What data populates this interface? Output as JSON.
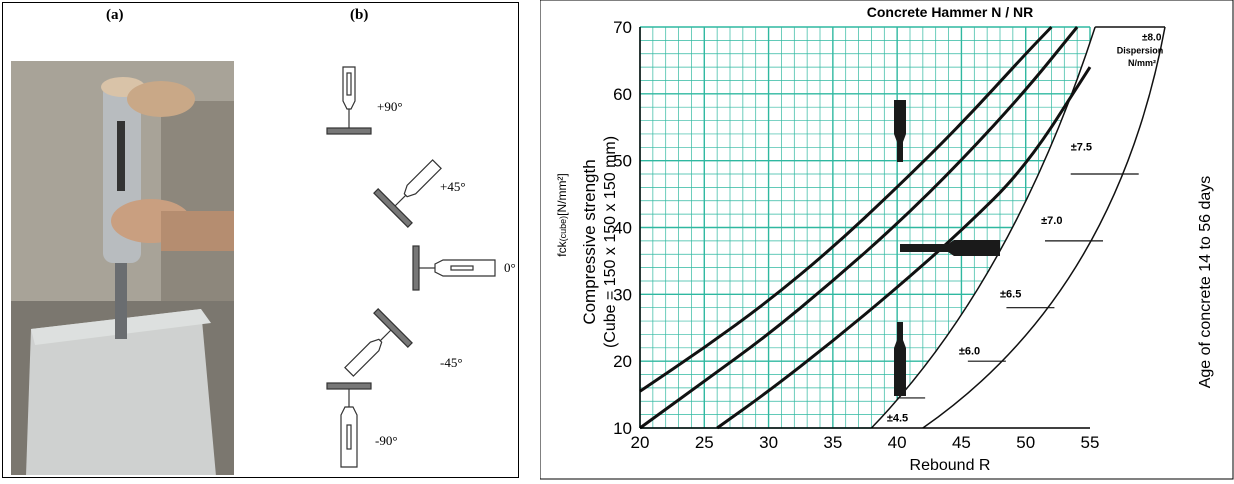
{
  "left_panel": {
    "label_a": "(a)",
    "label_b": "(b)",
    "angles": [
      "+90°",
      "+45°",
      "0°",
      "-45°",
      "-90°"
    ]
  },
  "colors": {
    "grid": "#2fb8a0",
    "curve": "#111111"
  },
  "chart_data": {
    "type": "line",
    "title": "Concrete Hammer N / NR",
    "xlabel": "Rebound R",
    "ylabel_symbol": "fck",
    "ylabel_sub": "(cube)",
    "ylabel_units": "[N/mm²]",
    "ylabel_line1": "Compressive strength",
    "ylabel_line2": "(Cube = 150 x 150 x 150 mm)",
    "right_label": "Age of concrete 14 to 56 days",
    "xlim": [
      20,
      55
    ],
    "ylim": [
      10,
      70
    ],
    "xticks": [
      20,
      25,
      30,
      35,
      40,
      45,
      50,
      55
    ],
    "yticks": [
      10,
      20,
      30,
      40,
      50,
      60,
      70
    ],
    "grid": true,
    "series": [
      {
        "x": [
          20,
          25,
          30,
          35,
          40,
          45,
          50,
          52
        ],
        "y": [
          15.5,
          22,
          29,
          37,
          46,
          55.5,
          66,
          70
        ]
      },
      {
        "x": [
          20,
          25,
          30,
          35,
          40,
          45,
          50,
          54
        ],
        "y": [
          10,
          17,
          24,
          32,
          40.5,
          50,
          60.5,
          70
        ]
      },
      {
        "x": [
          26,
          30,
          35,
          40,
          45,
          50,
          55
        ],
        "y": [
          10,
          15.5,
          23,
          31,
          39.5,
          49,
          64
        ]
      }
    ],
    "dispersion": {
      "header": "Dispersion",
      "units": "N/mm²",
      "labels": [
        "±4.5",
        "±6.0",
        "±6.5",
        "±7.0",
        "±7.5",
        "±8.0"
      ]
    }
  }
}
